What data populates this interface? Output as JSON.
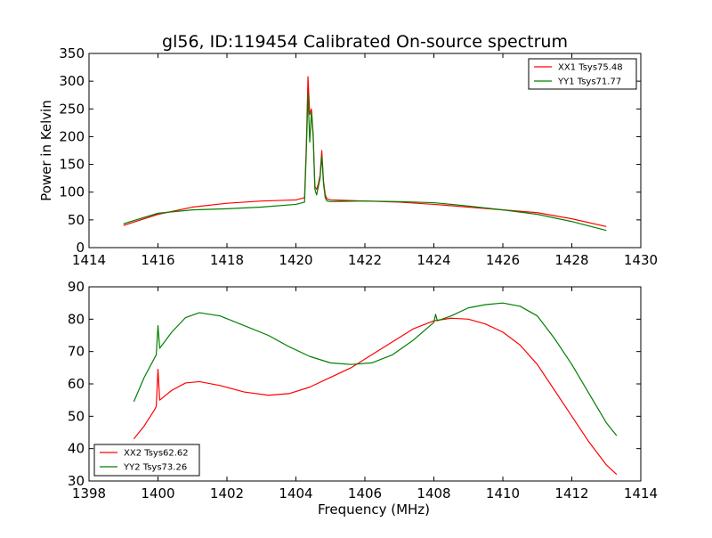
{
  "figure": {
    "title": "gl56, ID:119454 Calibrated On-source spectrum"
  },
  "colors": {
    "red": "#ff0000",
    "green": "#008000"
  },
  "chart_data": [
    {
      "type": "line",
      "title": "gl56, ID:119454 Calibrated On-source spectrum",
      "xlabel": "",
      "ylabel": "Power in Kelvin",
      "xlim": [
        1414,
        1430
      ],
      "ylim": [
        0,
        350
      ],
      "xticks": [
        1414,
        1416,
        1418,
        1420,
        1422,
        1424,
        1426,
        1428,
        1430
      ],
      "yticks": [
        0,
        50,
        100,
        150,
        200,
        250,
        300,
        350
      ],
      "legend_position": "top-right",
      "series": [
        {
          "name": "XX1 Tsys75.48",
          "color": "#ff0000",
          "x": [
            1415.0,
            1416.0,
            1417.0,
            1418.0,
            1419.0,
            1420.0,
            1420.25,
            1420.3,
            1420.35,
            1420.4,
            1420.45,
            1420.5,
            1420.55,
            1420.6,
            1420.65,
            1420.7,
            1420.75,
            1420.8,
            1420.85,
            1420.9,
            1421.0,
            1422.0,
            1423.0,
            1424.0,
            1425.0,
            1426.0,
            1427.0,
            1428.0,
            1429.0
          ],
          "y": [
            40,
            60,
            73,
            80,
            84,
            86,
            90,
            180,
            308,
            240,
            250,
            205,
            110,
            105,
            115,
            130,
            175,
            120,
            95,
            88,
            86,
            84,
            82,
            78,
            73,
            68,
            63,
            52,
            38
          ]
        },
        {
          "name": "YY1 Tsys71.77",
          "color": "#008000",
          "x": [
            1415.0,
            1416.0,
            1417.0,
            1418.0,
            1419.0,
            1420.0,
            1420.25,
            1420.3,
            1420.35,
            1420.4,
            1420.45,
            1420.5,
            1420.55,
            1420.6,
            1420.65,
            1420.7,
            1420.75,
            1420.8,
            1420.85,
            1420.9,
            1421.0,
            1422.0,
            1423.0,
            1424.0,
            1425.0,
            1426.0,
            1427.0,
            1428.0,
            1429.0
          ],
          "y": [
            43,
            62,
            68,
            70,
            73,
            78,
            82,
            170,
            278,
            190,
            245,
            200,
            105,
            95,
            110,
            125,
            165,
            115,
            90,
            84,
            83,
            84,
            83,
            81,
            75,
            68,
            60,
            47,
            31
          ]
        }
      ]
    },
    {
      "type": "line",
      "title": "",
      "xlabel": "Frequency (MHz)",
      "ylabel": "",
      "xlim": [
        1398,
        1414
      ],
      "ylim": [
        30,
        90
      ],
      "xticks": [
        1398,
        1400,
        1402,
        1404,
        1406,
        1408,
        1410,
        1412,
        1414
      ],
      "yticks": [
        30,
        40,
        50,
        60,
        70,
        80,
        90
      ],
      "legend_position": "bottom-left",
      "series": [
        {
          "name": "XX2 Tsys62.62",
          "color": "#ff0000",
          "x": [
            1399.3,
            1399.6,
            1399.9,
            1399.95,
            1400.0,
            1400.05,
            1400.4,
            1400.8,
            1401.2,
            1401.8,
            1402.5,
            1403.2,
            1403.8,
            1404.4,
            1405.0,
            1405.6,
            1406.2,
            1406.8,
            1407.4,
            1408.0,
            1408.5,
            1409.0,
            1409.5,
            1410.0,
            1410.5,
            1411.0,
            1411.5,
            1412.0,
            1412.5,
            1413.0,
            1413.3
          ],
          "y": [
            43,
            47,
            52,
            53,
            64.5,
            55,
            58,
            60.3,
            60.7,
            59.5,
            57.5,
            56.5,
            57,
            59,
            62,
            65,
            69,
            73,
            77,
            79.5,
            80.3,
            80,
            78.5,
            76,
            72,
            66,
            58,
            50,
            42,
            35,
            32
          ]
        },
        {
          "name": "YY2 Tsys73.26",
          "color": "#008000",
          "x": [
            1399.3,
            1399.6,
            1399.9,
            1399.95,
            1400.0,
            1400.05,
            1400.4,
            1400.8,
            1401.2,
            1401.8,
            1402.5,
            1403.2,
            1403.8,
            1404.4,
            1405.0,
            1405.6,
            1406.2,
            1406.8,
            1407.4,
            1408.0,
            1408.05,
            1408.1,
            1408.5,
            1409.0,
            1409.5,
            1410.0,
            1410.5,
            1411.0,
            1411.5,
            1412.0,
            1412.5,
            1413.0,
            1413.3
          ],
          "y": [
            54.5,
            62,
            68,
            69,
            78,
            71,
            76,
            80.5,
            82,
            81,
            78,
            75,
            71.5,
            68.5,
            66.5,
            66,
            66.5,
            69,
            73.5,
            79,
            81.5,
            79.5,
            81,
            83.5,
            84.5,
            85,
            84,
            81,
            74,
            66,
            57,
            48,
            44
          ]
        }
      ]
    }
  ]
}
